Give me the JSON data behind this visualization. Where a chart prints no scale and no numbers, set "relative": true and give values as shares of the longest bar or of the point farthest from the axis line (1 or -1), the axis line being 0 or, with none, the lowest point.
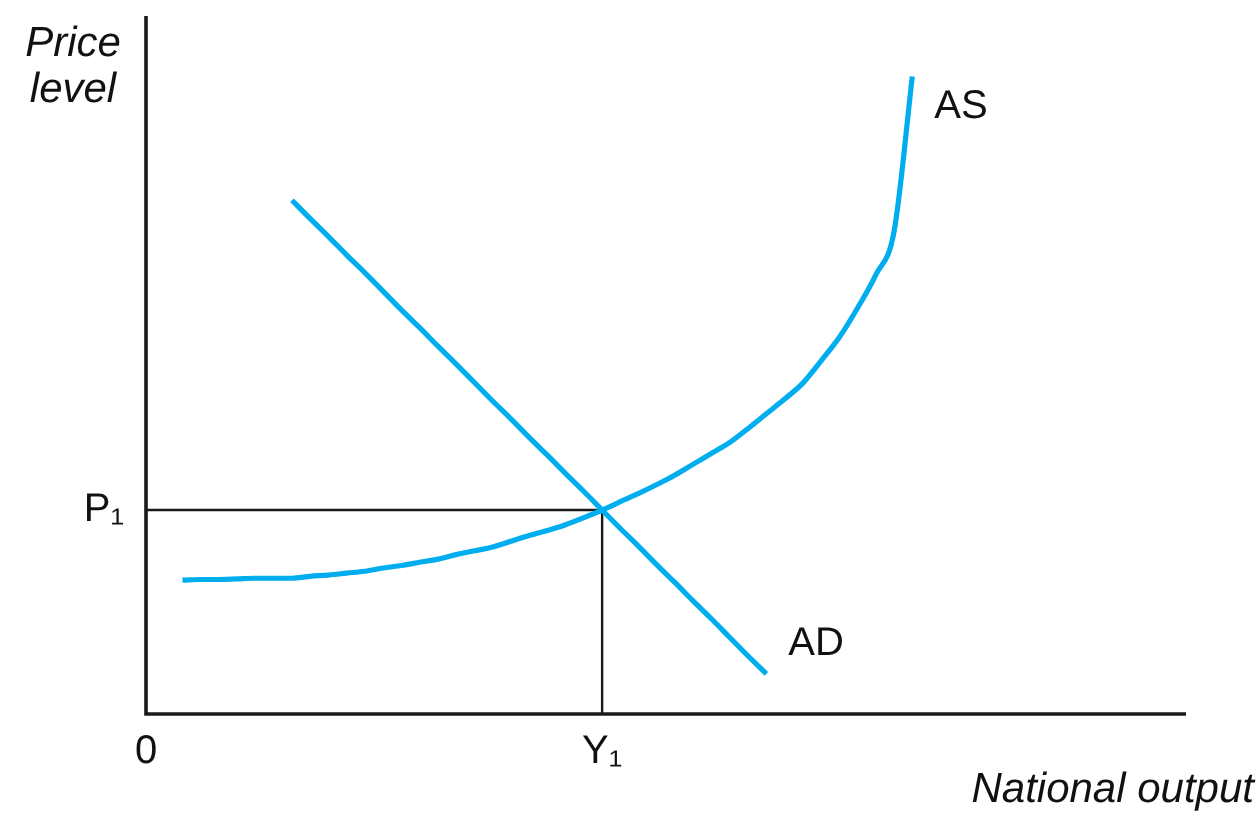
{
  "chart_data": {
    "type": "line",
    "xlabel": "National output",
    "ylabel": "Price level",
    "relative": true,
    "legend": false,
    "marker": "none",
    "line_style": "solid",
    "categories": [
      "0",
      null,
      null,
      null,
      null,
      null,
      null,
      null,
      null,
      null,
      null,
      null,
      null,
      null,
      null,
      null,
      null,
      null,
      null,
      null,
      null,
      null,
      null,
      null,
      null,
      "Y₁",
      null,
      null,
      null,
      null,
      null,
      null,
      null,
      null,
      null,
      null,
      null,
      null,
      null,
      null,
      null,
      null,
      null,
      null,
      null,
      null,
      null,
      null,
      null,
      null,
      null,
      null,
      null,
      null,
      null,
      null,
      null,
      null
    ],
    "series": [
      {
        "name": "AS",
        "color": "#00aeef",
        "values": [
          null,
          null,
          0.21,
          0.211,
          0.211,
          0.212,
          0.213,
          0.213,
          0.213,
          0.216,
          0.218,
          0.221,
          0.224,
          0.229,
          0.233,
          0.238,
          0.243,
          0.25,
          0.256,
          0.262,
          0.271,
          0.28,
          0.288,
          0.297,
          0.308,
          0.32,
          0.333,
          0.346,
          0.36,
          0.375,
          0.392,
          0.409,
          0.426,
          0.448,
          0.471,
          0.494,
          0.519,
          0.554,
          0.591,
          0.637,
          0.689,
          0.757,
          1,
          null,
          null,
          null,
          null,
          null,
          null,
          null,
          null,
          null,
          null,
          null,
          null,
          null,
          null,
          null
        ]
      },
      {
        "name": "AD",
        "color": "#00aeef",
        "values": [
          null,
          null,
          null,
          null,
          null,
          null,
          null,
          null,
          0.806,
          0.777,
          0.749,
          0.72,
          0.692,
          0.663,
          0.634,
          0.606,
          0.577,
          0.549,
          0.52,
          0.491,
          0.463,
          0.434,
          0.406,
          0.377,
          0.349,
          0.32,
          0.291,
          0.263,
          0.234,
          0.206,
          0.177,
          0.149,
          0.12,
          0.091,
          0.063,
          null,
          null,
          null,
          null,
          null,
          null,
          null,
          null,
          null,
          null,
          null,
          null,
          null,
          null,
          null,
          null,
          null,
          null,
          null,
          null,
          null,
          null,
          null
        ]
      }
    ],
    "ref_lines": [
      {
        "axis": "y",
        "value": 0.32,
        "label": "P₁"
      },
      {
        "axis": "x",
        "value": "Y₁"
      }
    ]
  }
}
